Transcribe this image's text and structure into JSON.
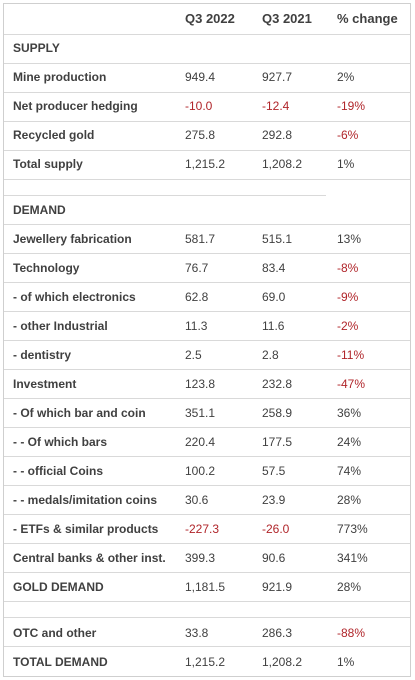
{
  "header": {
    "col_a": "Q3 2022",
    "col_b": "Q3 2021",
    "col_c": "% change"
  },
  "sections": [
    {
      "title": "SUPPLY",
      "rows": [
        {
          "label": "Mine production",
          "a": "949.4",
          "b": "927.7",
          "c": "2%"
        },
        {
          "label": "Net producer hedging",
          "a": "-10.0",
          "b": "-12.4",
          "c": "-19%"
        },
        {
          "label": "Recycled gold",
          "a": "275.8",
          "b": "292.8",
          "c": "-6%"
        },
        {
          "label": "Total supply",
          "a": "1,215.2",
          "b": "1,208.2",
          "c": "1%"
        }
      ]
    },
    {
      "title": "DEMAND",
      "rows": [
        {
          "label": "Jewellery fabrication",
          "a": "581.7",
          "b": "515.1",
          "c": "13%"
        },
        {
          "label": "Technology",
          "a": "76.7",
          "b": "83.4",
          "c": "-8%"
        },
        {
          "label": "- of which electronics",
          "a": "62.8",
          "b": "69.0",
          "c": "-9%"
        },
        {
          "label": "- other Industrial",
          "a": "11.3",
          "b": "11.6",
          "c": "-2%"
        },
        {
          "label": "- dentistry",
          "a": "2.5",
          "b": "2.8",
          "c": "-11%"
        },
        {
          "label": "Investment",
          "a": "123.8",
          "b": "232.8",
          "c": "-47%"
        },
        {
          "label": "- Of which bar and coin",
          "a": "351.1",
          "b": "258.9",
          "c": "36%"
        },
        {
          "label": "- - Of which bars",
          "a": "220.4",
          "b": "177.5",
          "c": "24%"
        },
        {
          "label": "- - official Coins",
          "a": "100.2",
          "b": "57.5",
          "c": "74%"
        },
        {
          "label": "- - medals/imitation coins",
          "a": "30.6",
          "b": "23.9",
          "c": "28%"
        },
        {
          "label": "- ETFs & similar products",
          "a": "-227.3",
          "b": "-26.0",
          "c": "773%"
        },
        {
          "label": "Central banks & other inst.",
          "a": "399.3",
          "b": "90.6",
          "c": "341%"
        },
        {
          "label": "GOLD DEMAND",
          "a": "1,181.5",
          "b": "921.9",
          "c": "28%"
        }
      ]
    },
    {
      "title": "",
      "rows": [
        {
          "label": "OTC and other",
          "a": "33.8",
          "b": "286.3",
          "c": "-88%"
        },
        {
          "label": "TOTAL DEMAND",
          "a": "1,215.2",
          "b": "1,208.2",
          "c": "1%"
        }
      ]
    }
  ],
  "colors": {
    "text": "#404040",
    "negative": "#b0252a",
    "border": "#cfcfcf",
    "rule": "#d9d9d9"
  }
}
